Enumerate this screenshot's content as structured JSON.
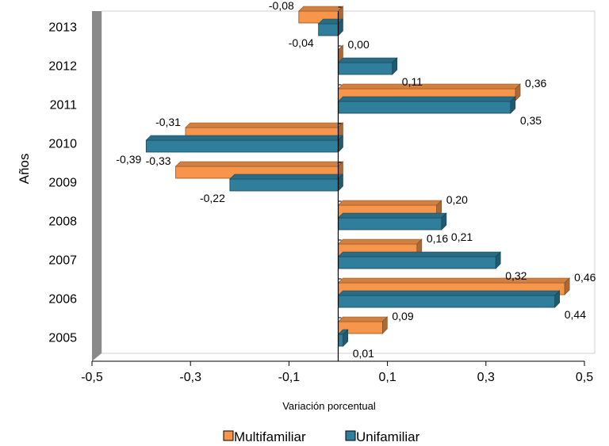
{
  "chart_data": {
    "type": "bar",
    "orientation": "horizontal",
    "categories": [
      "2005",
      "2006",
      "2007",
      "2008",
      "2009",
      "2010",
      "2011",
      "2012",
      "2013"
    ],
    "series": [
      {
        "name": "Multifamiliar",
        "color": "#f7964a",
        "values": [
          0.09,
          0.46,
          0.16,
          0.2,
          -0.33,
          -0.31,
          0.36,
          0.0,
          -0.08
        ]
      },
      {
        "name": "Unifamiliar",
        "color": "#2f7f9c",
        "values": [
          0.01,
          0.44,
          0.32,
          0.21,
          -0.22,
          -0.39,
          0.35,
          0.11,
          -0.04
        ]
      }
    ],
    "data_labels": {
      "Multifamiliar": [
        "0,09",
        "0,46",
        "0,16",
        "0,20",
        "-0,33",
        "-0,31",
        "0,36",
        "0,00",
        "-0,08"
      ],
      "Unifamiliar": [
        "0,01",
        "0,44",
        "0,32",
        "0,21",
        "-0,22",
        "-0,39",
        "0,35",
        "0,11",
        "-0,04"
      ]
    },
    "xlabel": "Variación porcentual",
    "ylabel": "Años",
    "xlim": [
      -0.5,
      0.5
    ],
    "xticks": [
      -0.5,
      -0.3,
      -0.1,
      0.1,
      0.3,
      0.5
    ],
    "xtick_labels": [
      "-0,5",
      "-0,3",
      "-0,1",
      "0,1",
      "0,3",
      "0,5"
    ],
    "grid": false,
    "legend_position": "bottom",
    "style": "3d"
  }
}
